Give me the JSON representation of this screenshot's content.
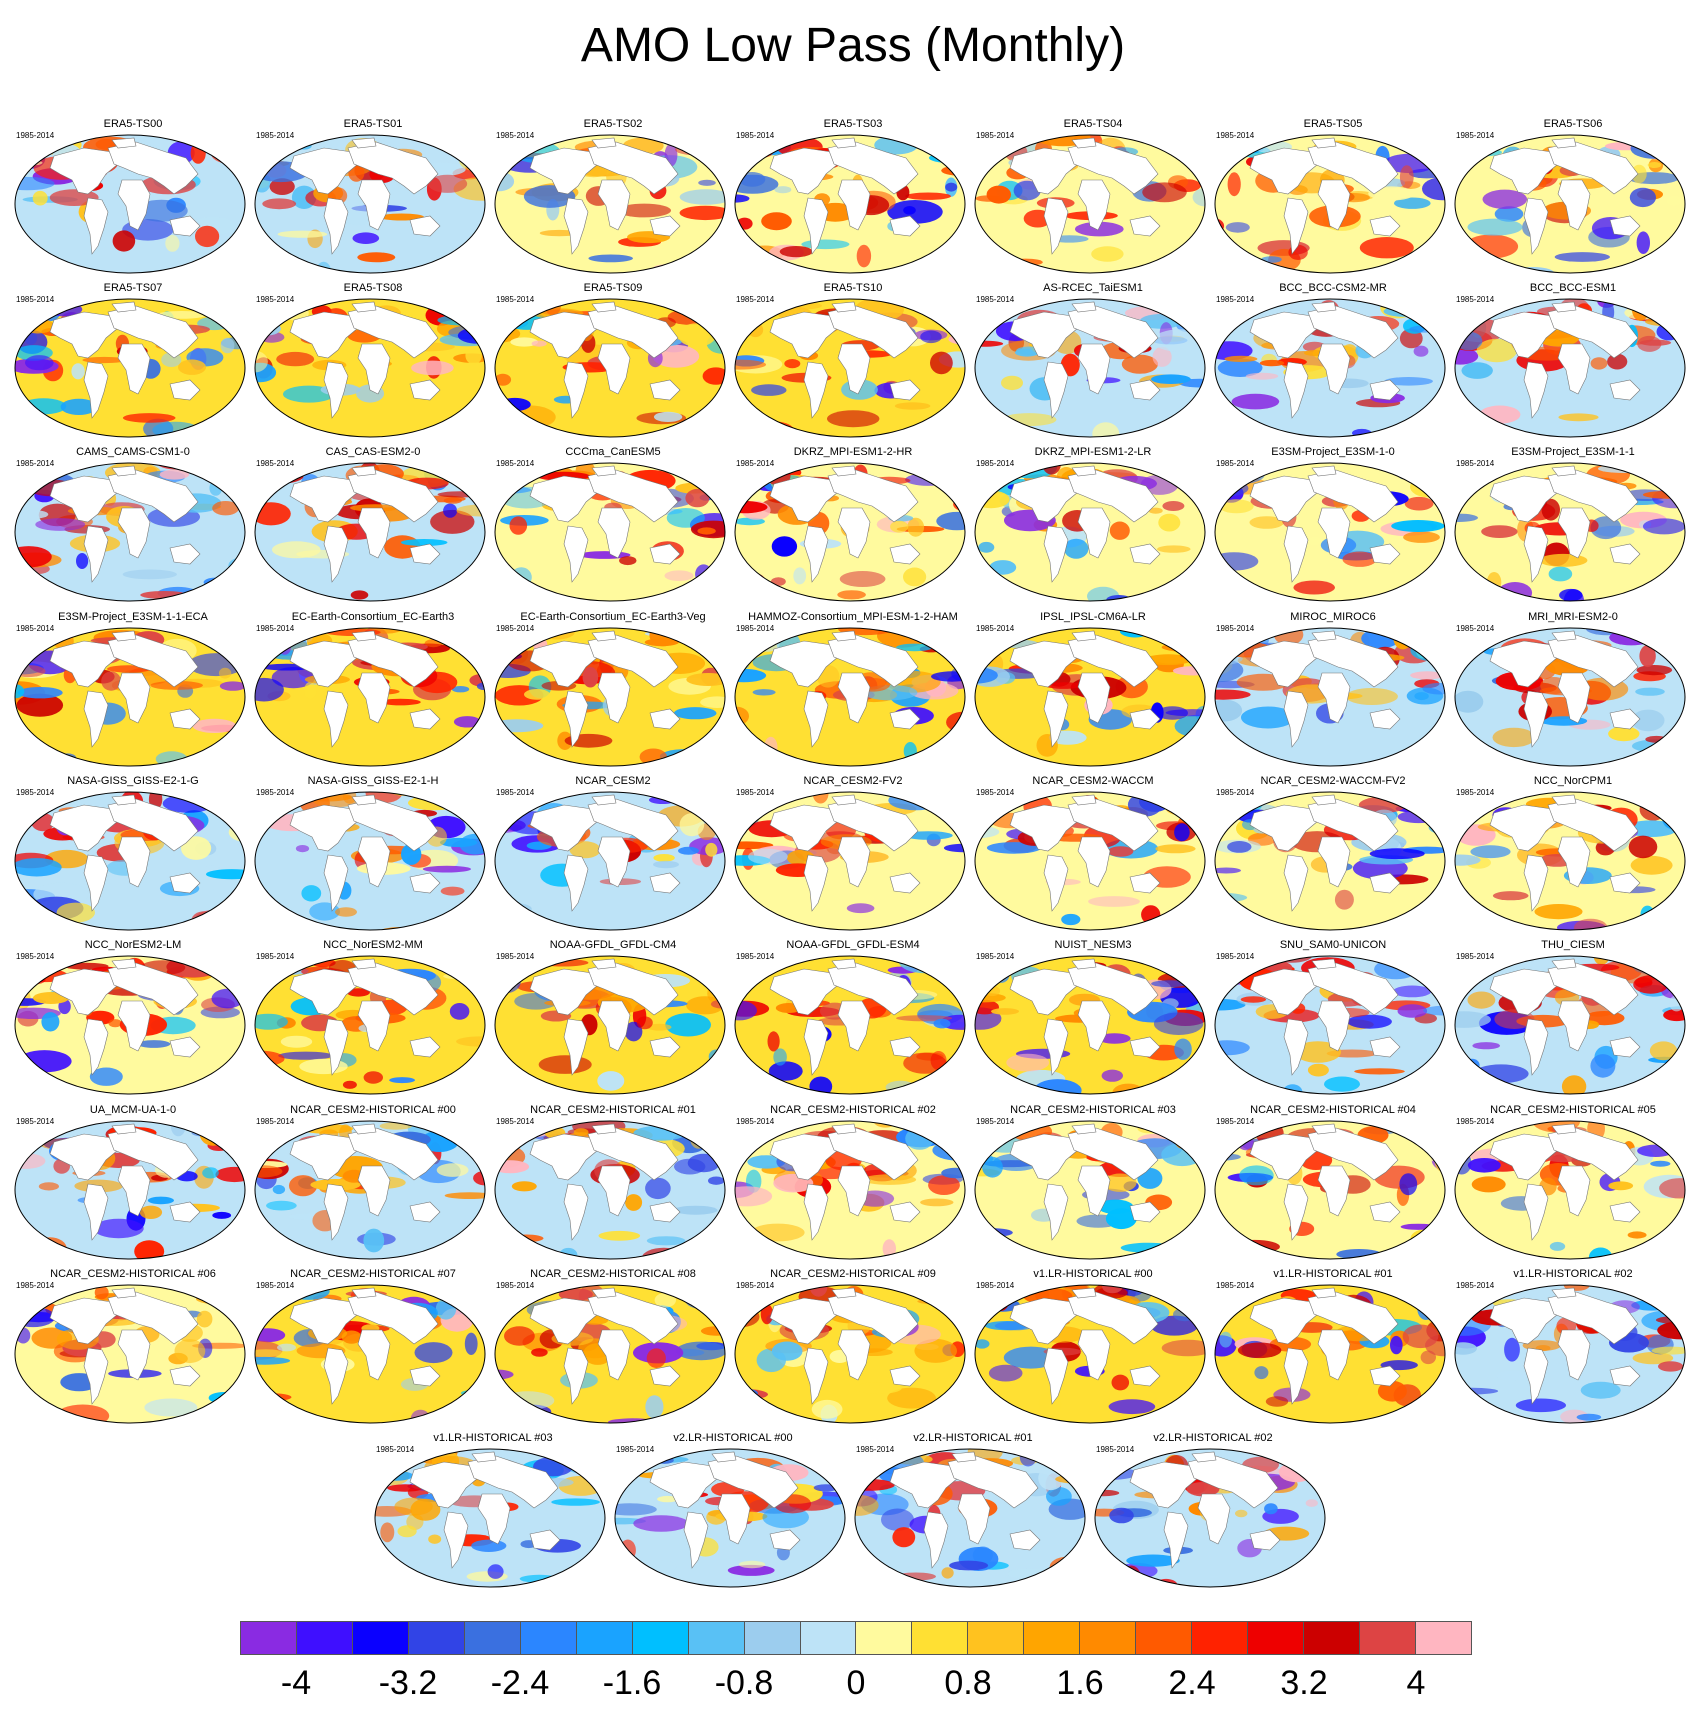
{
  "chart_data": {
    "type": "heatmap",
    "title": "AMO Low Pass (Monthly)",
    "map_projection": "Robinson world map (global sea surface temperature pattern)",
    "period_label": "1985-2014",
    "panels": [
      "ERA5-TS00",
      "ERA5-TS01",
      "ERA5-TS02",
      "ERA5-TS03",
      "ERA5-TS04",
      "ERA5-TS05",
      "ERA5-TS06",
      "ERA5-TS07",
      "ERA5-TS08",
      "ERA5-TS09",
      "ERA5-TS10",
      "AS-RCEC_TaiESM1",
      "BCC_BCC-CSM2-MR",
      "BCC_BCC-ESM1",
      "CAMS_CAMS-CSM1-0",
      "CAS_CAS-ESM2-0",
      "CCCma_CanESM5",
      "DKRZ_MPI-ESM1-2-HR",
      "DKRZ_MPI-ESM1-2-LR",
      "E3SM-Project_E3SM-1-0",
      "E3SM-Project_E3SM-1-1",
      "E3SM-Project_E3SM-1-1-ECA",
      "EC-Earth-Consortium_EC-Earth3",
      "EC-Earth-Consortium_EC-Earth3-Veg",
      "HAMMOZ-Consortium_MPI-ESM-1-2-HAM",
      "IPSL_IPSL-CM6A-LR",
      "MIROC_MIROC6",
      "MRI_MRI-ESM2-0",
      "NASA-GISS_GISS-E2-1-G",
      "NASA-GISS_GISS-E2-1-H",
      "NCAR_CESM2",
      "NCAR_CESM2-FV2",
      "NCAR_CESM2-WACCM",
      "NCAR_CESM2-WACCM-FV2",
      "NCC_NorCPM1",
      "NCC_NorESM2-LM",
      "NCC_NorESM2-MM",
      "NOAA-GFDL_GFDL-CM4",
      "NOAA-GFDL_GFDL-ESM4",
      "NUIST_NESM3",
      "SNU_SAM0-UNICON",
      "THU_CIESM",
      "UA_MCM-UA-1-0",
      "NCAR_CESM2-HISTORICAL  #00",
      "NCAR_CESM2-HISTORICAL  #01",
      "NCAR_CESM2-HISTORICAL  #02",
      "NCAR_CESM2-HISTORICAL  #03",
      "NCAR_CESM2-HISTORICAL  #04",
      "NCAR_CESM2-HISTORICAL  #05",
      "NCAR_CESM2-HISTORICAL  #06",
      "NCAR_CESM2-HISTORICAL  #07",
      "NCAR_CESM2-HISTORICAL  #08",
      "NCAR_CESM2-HISTORICAL  #09",
      "v1.LR-HISTORICAL  #00",
      "v1.LR-HISTORICAL  #01",
      "v1.LR-HISTORICAL  #02",
      "v1.LR-HISTORICAL  #03",
      "v2.LR-HISTORICAL  #00",
      "v2.LR-HISTORICAL  #01",
      "v2.LR-HISTORICAL  #02"
    ],
    "colorbar": {
      "levels": [
        -4,
        -3.6,
        -3.2,
        -2.8,
        -2.4,
        -2,
        -1.6,
        -1.2,
        -0.8,
        -0.4,
        0,
        0.4,
        0.8,
        1.2,
        1.6,
        2,
        2.4,
        2.8,
        3.2,
        3.6,
        4
      ],
      "tick_labels": [
        "-4",
        "-3.2",
        "-2.4",
        "-1.6",
        "-0.8",
        "0",
        "0.8",
        "1.6",
        "2.4",
        "3.2",
        "4"
      ],
      "tick_values": [
        -4,
        -3.2,
        -2.4,
        -1.6,
        -0.8,
        0,
        0.8,
        1.6,
        2.4,
        3.2,
        4
      ],
      "colors": [
        "#8a2be2",
        "#3f0fff",
        "#0a00ff",
        "#3144e6",
        "#3a70e0",
        "#2b86ff",
        "#1aa3ff",
        "#00bfff",
        "#59c1f5",
        "#9ccdee",
        "#bde3f7",
        "#fffa9e",
        "#ffe033",
        "#ffc21f",
        "#ffa500",
        "#ff8a00",
        "#ff5a00",
        "#ff2200",
        "#ee0000",
        "#cc0000",
        "#dd4444",
        "#ffb6c1"
      ]
    }
  }
}
